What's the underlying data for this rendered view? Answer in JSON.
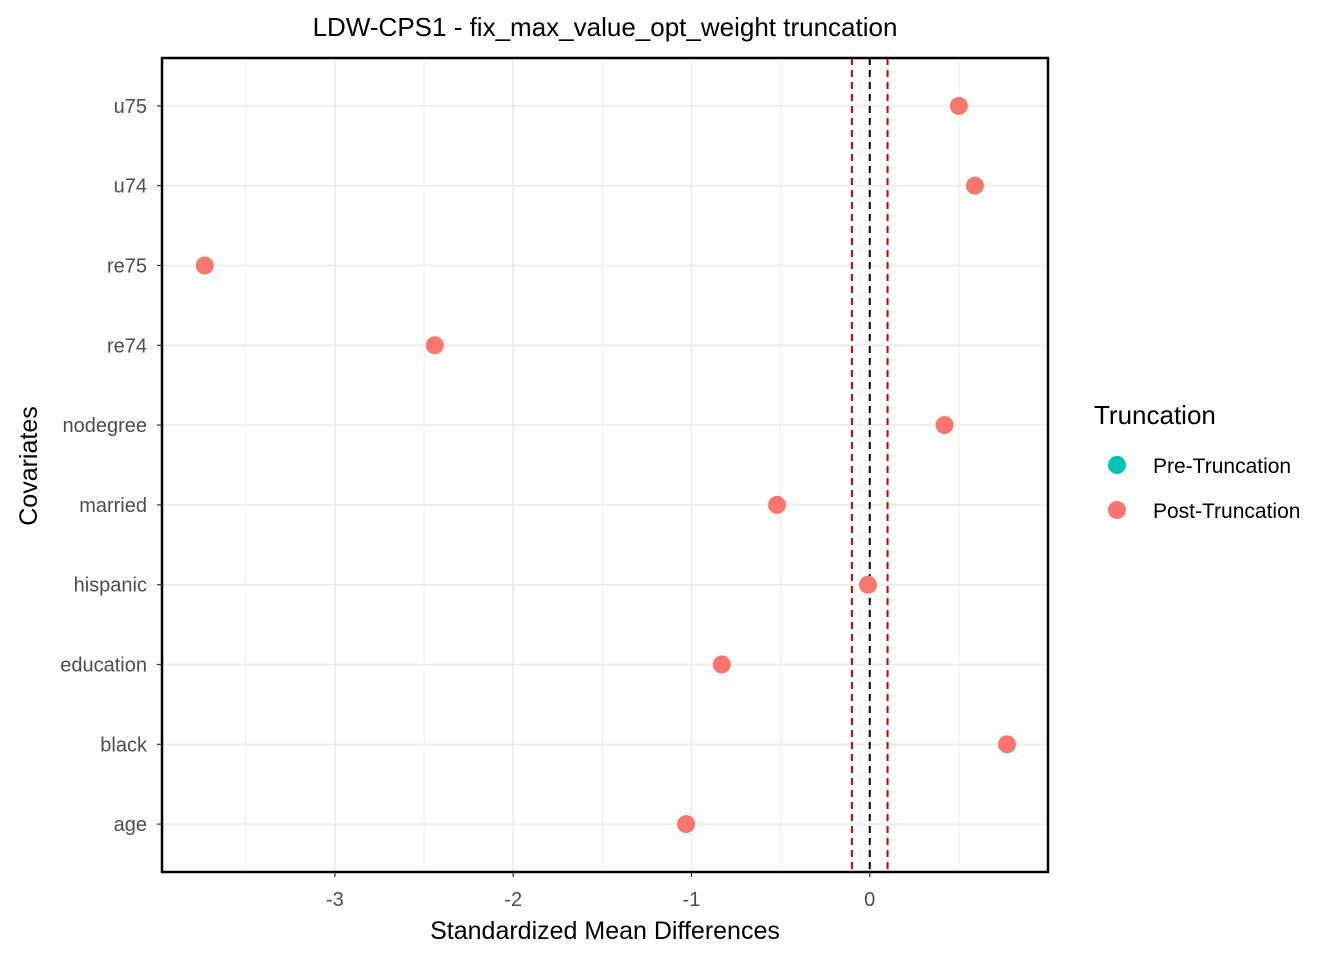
{
  "chart_data": {
    "type": "scatter",
    "title": "LDW-CPS1 - fix_max_value_opt_weight truncation",
    "xlabel": "Standardized Mean Differences",
    "ylabel": "Covariates",
    "categories": [
      "age",
      "black",
      "education",
      "hispanic",
      "married",
      "nodegree",
      "re74",
      "re75",
      "u74",
      "u75"
    ],
    "xlim": [
      -3.97,
      1.0
    ],
    "x_ticks": [
      {
        "value": -3,
        "label": "-3"
      },
      {
        "value": -2,
        "label": "-2"
      },
      {
        "value": -1,
        "label": "-1"
      },
      {
        "value": 0,
        "label": "0"
      }
    ],
    "grid": true,
    "reference_lines": [
      {
        "x": 0,
        "color": "#000000",
        "style": "dashed"
      },
      {
        "x": -0.1,
        "color": "#cc0000",
        "style": "dashed"
      },
      {
        "x": 0.1,
        "color": "#cc0000",
        "style": "dashed"
      }
    ],
    "series": [
      {
        "name": "Pre-Truncation",
        "color": "#00c4b4",
        "values": []
      },
      {
        "name": "Post-Truncation",
        "color": "#f8766d",
        "values": [
          -1.03,
          0.77,
          -0.83,
          -0.01,
          -0.52,
          0.42,
          -2.44,
          -3.73,
          0.59,
          0.5
        ]
      }
    ],
    "legend": {
      "title": "Truncation",
      "position": "right"
    }
  }
}
